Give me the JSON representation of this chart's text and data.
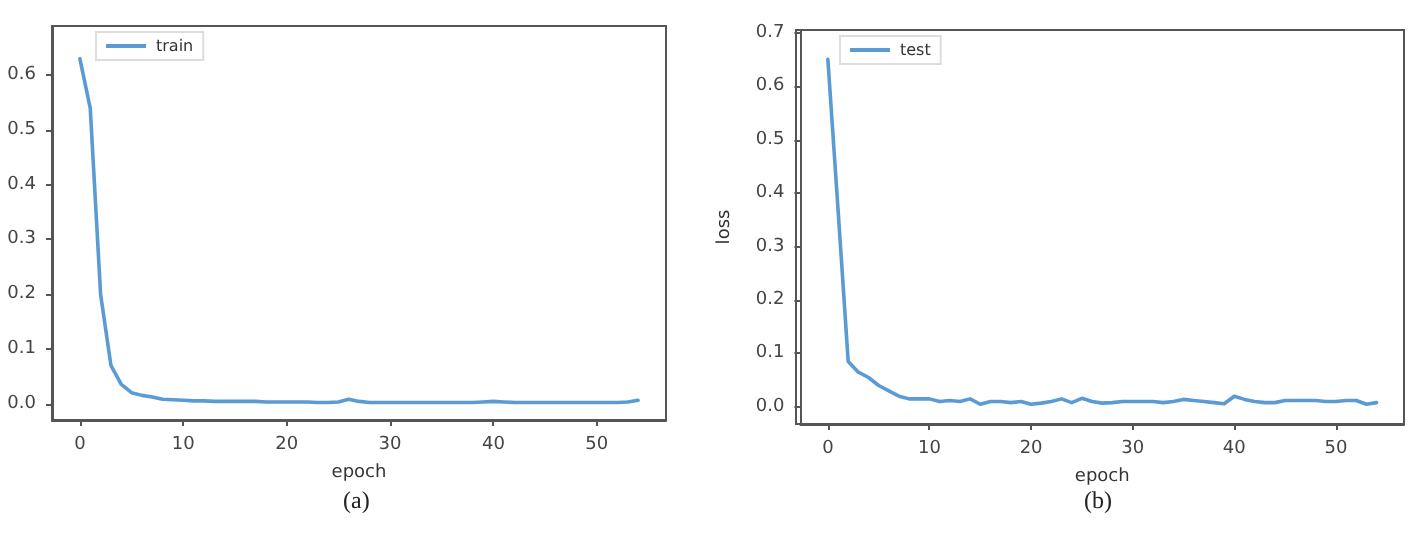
{
  "chart_data": [
    {
      "type": "line",
      "xlabel": "epoch",
      "annotations": [
        "(a)"
      ],
      "legend": "top left",
      "grid": false,
      "marker": "none",
      "line_style": "solid",
      "x": [
        0,
        1,
        2,
        3,
        4,
        5,
        6,
        7,
        8,
        9,
        10,
        11,
        12,
        13,
        14,
        15,
        16,
        17,
        18,
        19,
        20,
        21,
        22,
        23,
        24,
        25,
        26,
        27,
        28,
        29,
        30,
        31,
        32,
        33,
        34,
        35,
        36,
        37,
        38,
        39,
        40,
        41,
        42,
        43,
        44,
        45,
        46,
        47,
        48,
        49,
        50,
        51,
        52,
        53,
        54
      ],
      "series": [
        {
          "name": "train",
          "color": "#5a9bd4",
          "values": [
            0.63,
            0.54,
            0.2,
            0.07,
            0.035,
            0.02,
            0.015,
            0.012,
            0.008,
            0.007,
            0.006,
            0.005,
            0.005,
            0.004,
            0.004,
            0.004,
            0.004,
            0.004,
            0.003,
            0.003,
            0.003,
            0.003,
            0.003,
            0.002,
            0.002,
            0.003,
            0.008,
            0.004,
            0.002,
            0.002,
            0.002,
            0.002,
            0.002,
            0.002,
            0.002,
            0.002,
            0.002,
            0.002,
            0.002,
            0.003,
            0.004,
            0.003,
            0.002,
            0.002,
            0.002,
            0.002,
            0.002,
            0.002,
            0.002,
            0.002,
            0.002,
            0.002,
            0.002,
            0.003,
            0.006
          ]
        }
      ],
      "xlim": [
        -2.7,
        56.7
      ],
      "xticks": [
        0,
        10,
        20,
        30,
        40,
        50
      ],
      "ylim": [
        -0.03,
        0.69
      ],
      "yticks": [
        {
          "value": 0,
          "label": "0.0"
        },
        {
          "value": 0.1,
          "label": "0.1"
        },
        {
          "value": 0.2,
          "label": "0.2"
        },
        {
          "value": 0.3,
          "label": "0.3"
        },
        {
          "value": 0.4,
          "label": "0.4"
        },
        {
          "value": 0.5,
          "label": "0.5"
        },
        {
          "value": 0.6,
          "label": "0.6"
        }
      ]
    },
    {
      "type": "line",
      "xlabel": "epoch",
      "ylabel": "loss",
      "annotations": [
        "(b)"
      ],
      "legend": "top left",
      "grid": false,
      "marker": "none",
      "line_style": "solid",
      "x": [
        0,
        1,
        2,
        3,
        4,
        5,
        6,
        7,
        8,
        9,
        10,
        11,
        12,
        13,
        14,
        15,
        16,
        17,
        18,
        19,
        20,
        21,
        22,
        23,
        24,
        25,
        26,
        27,
        28,
        29,
        30,
        31,
        32,
        33,
        34,
        35,
        36,
        37,
        38,
        39,
        40,
        41,
        42,
        43,
        44,
        45,
        46,
        47,
        48,
        49,
        50,
        51,
        52,
        53,
        54
      ],
      "series": [
        {
          "name": "test",
          "color": "#5a9bd4",
          "values": [
            0.65,
            0.37,
            0.085,
            0.065,
            0.055,
            0.04,
            0.03,
            0.02,
            0.015,
            0.015,
            0.015,
            0.01,
            0.012,
            0.01,
            0.015,
            0.005,
            0.01,
            0.01,
            0.008,
            0.01,
            0.005,
            0.007,
            0.01,
            0.015,
            0.008,
            0.016,
            0.01,
            0.007,
            0.008,
            0.01,
            0.01,
            0.01,
            0.01,
            0.008,
            0.01,
            0.014,
            0.012,
            0.01,
            0.008,
            0.006,
            0.02,
            0.014,
            0.01,
            0.008,
            0.008,
            0.012,
            0.012,
            0.012,
            0.012,
            0.01,
            0.01,
            0.012,
            0.012,
            0.005,
            0.008
          ]
        }
      ],
      "xlim": [
        -2.7,
        56.7
      ],
      "xticks": [
        0,
        10,
        20,
        30,
        40,
        50
      ],
      "ylim": [
        -0.032,
        0.705
      ],
      "yticks": [
        {
          "value": 0,
          "label": "0.0"
        },
        {
          "value": 0.1,
          "label": "0.1"
        },
        {
          "value": 0.2,
          "label": "0.2"
        },
        {
          "value": 0.3,
          "label": "0.3"
        },
        {
          "value": 0.4,
          "label": "0.4"
        },
        {
          "value": 0.5,
          "label": "0.5"
        },
        {
          "value": 0.6,
          "label": "0.6"
        },
        {
          "value": 0.7,
          "label": "0.7"
        }
      ]
    }
  ]
}
